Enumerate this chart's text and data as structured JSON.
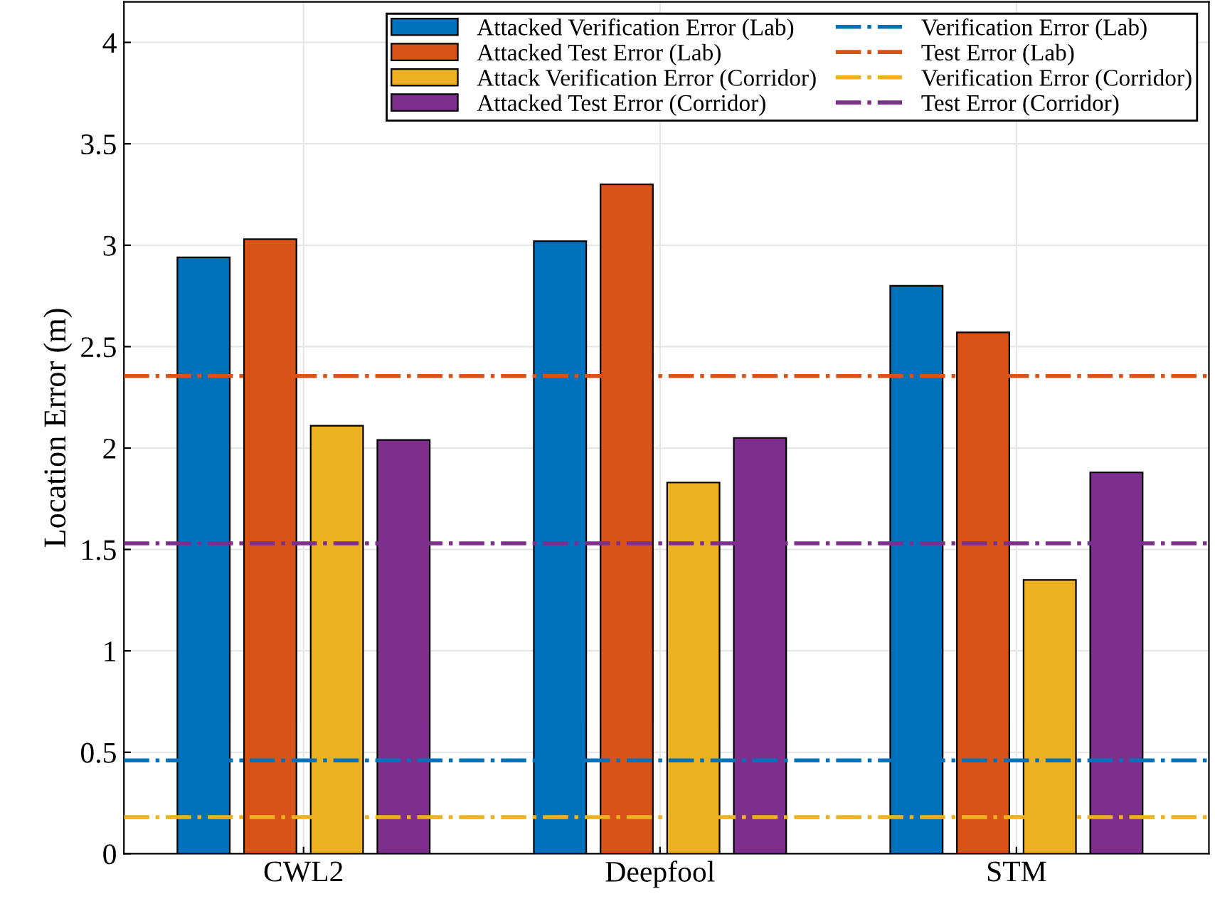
{
  "chart_data": {
    "type": "bar",
    "ylabel": "Location Error (m)",
    "categories": [
      "CWL2",
      "Deepfool",
      "STM"
    ],
    "series": [
      {
        "name": "Attacked Verification Error (Lab)",
        "color": "#0072bd",
        "values": [
          2.94,
          3.02,
          2.8
        ]
      },
      {
        "name": "Attacked Test Error (Lab)",
        "color": "#d95319",
        "values": [
          3.03,
          3.3,
          2.57
        ]
      },
      {
        "name": "Attack Verification Error (Corridor)",
        "color": "#edb120",
        "values": [
          2.11,
          1.83,
          1.35
        ]
      },
      {
        "name": "Attacked Test Error (Corridor)",
        "color": "#7e2f8e",
        "values": [
          2.04,
          2.05,
          1.88
        ]
      }
    ],
    "ref_lines": [
      {
        "axis": "y",
        "value": 0.46,
        "label": "Verification Error (Lab)",
        "color": "#0072bd",
        "line_style": "dashdot"
      },
      {
        "axis": "y",
        "value": 2.355,
        "label": "Test Error (Lab)",
        "color": "#d95319",
        "line_style": "dashdot"
      },
      {
        "axis": "y",
        "value": 0.18,
        "label": "Verification Error (Corridor)",
        "color": "#edb120",
        "line_style": "dashdot"
      },
      {
        "axis": "y",
        "value": 1.53,
        "label": "Test Error (Corridor)",
        "color": "#7e2f8e",
        "line_style": "dashdot"
      }
    ],
    "ylim": [
      0,
      4.2
    ],
    "yticks": [
      0,
      0.5,
      1,
      1.5,
      2,
      2.5,
      3,
      3.5,
      4
    ],
    "grid": true,
    "legend": "top right"
  }
}
